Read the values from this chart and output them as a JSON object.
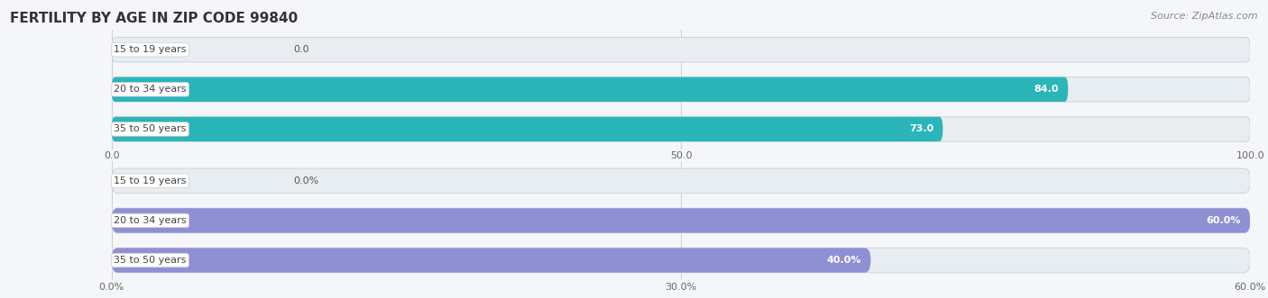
{
  "title": "FERTILITY BY AGE IN ZIP CODE 99840",
  "source": "Source: ZipAtlas.com",
  "top_chart": {
    "categories": [
      "15 to 19 years",
      "20 to 34 years",
      "35 to 50 years"
    ],
    "values": [
      0.0,
      84.0,
      73.0
    ],
    "value_labels": [
      "0.0",
      "84.0",
      "73.0"
    ],
    "xlim": [
      0,
      100
    ],
    "xticks": [
      0.0,
      50.0,
      100.0
    ],
    "xtick_labels": [
      "0.0",
      "50.0",
      "100.0"
    ],
    "bar_color": "#2ab5b9",
    "bar_bg_color": "#e8edf2",
    "bar_bg_edge_color": "#d0d8e0"
  },
  "bottom_chart": {
    "categories": [
      "15 to 19 years",
      "20 to 34 years",
      "35 to 50 years"
    ],
    "values": [
      0.0,
      60.0,
      40.0
    ],
    "value_labels": [
      "0.0%",
      "60.0%",
      "40.0%"
    ],
    "xlim": [
      0,
      60
    ],
    "xticks": [
      0.0,
      30.0,
      60.0
    ],
    "xtick_labels": [
      "0.0%",
      "30.0%",
      "60.0%"
    ],
    "bar_color": "#8f90d4",
    "bar_bg_color": "#e8edf2",
    "bar_bg_edge_color": "#d0d8e0"
  },
  "title_fontsize": 11,
  "source_fontsize": 8,
  "label_fontsize": 8,
  "value_fontsize": 8,
  "tick_fontsize": 8,
  "bar_height": 0.62,
  "fig_bg_color": "#f4f6f9"
}
